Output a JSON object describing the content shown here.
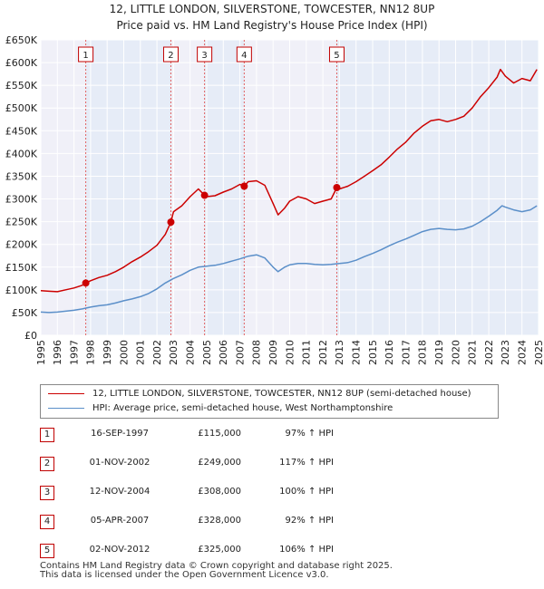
{
  "chart_data": {
    "type": "line",
    "title": "12, LITTLE LONDON, SILVERSTONE, TOWCESTER, NN12 8UP",
    "subtitle": "Price paid vs. HM Land Registry's House Price Index (HPI)",
    "xlabel": "",
    "ylabel": "",
    "xlim": [
      1995,
      2025
    ],
    "ylim": [
      0,
      650000
    ],
    "x_ticks": [
      "1995",
      "1996",
      "1997",
      "1998",
      "1999",
      "2000",
      "2001",
      "2002",
      "2003",
      "2004",
      "2005",
      "2006",
      "2007",
      "2008",
      "2009",
      "2010",
      "2011",
      "2012",
      "2013",
      "2014",
      "2015",
      "2016",
      "2017",
      "2018",
      "2019",
      "2020",
      "2021",
      "2022",
      "2023",
      "2024",
      "2025"
    ],
    "y_ticks": [
      {
        "value": 0,
        "label": "£0"
      },
      {
        "value": 50000,
        "label": "£50K"
      },
      {
        "value": 100000,
        "label": "£100K"
      },
      {
        "value": 150000,
        "label": "£150K"
      },
      {
        "value": 200000,
        "label": "£200K"
      },
      {
        "value": 250000,
        "label": "£250K"
      },
      {
        "value": 300000,
        "label": "£300K"
      },
      {
        "value": 350000,
        "label": "£350K"
      },
      {
        "value": 400000,
        "label": "£400K"
      },
      {
        "value": 450000,
        "label": "£450K"
      },
      {
        "value": 500000,
        "label": "£500K"
      },
      {
        "value": 550000,
        "label": "£550K"
      },
      {
        "value": 600000,
        "label": "£600K"
      },
      {
        "value": 650000,
        "label": "£650K"
      }
    ],
    "grid": true,
    "colors": {
      "property": "#cc0000",
      "hpi": "#5b8fc9",
      "shade": "#e6ecf7",
      "marker_line": "#e06060",
      "grid": "#ffffff"
    },
    "shaded_ranges": [
      [
        1997.71,
        2002.84
      ],
      [
        2004.87,
        2007.26
      ],
      [
        2012.84,
        2025.0
      ]
    ],
    "series": [
      {
        "name": "12, LITTLE LONDON, SILVERSTONE, TOWCESTER, NN12 8UP (semi-detached house)",
        "color": "#cc0000",
        "x": [
          1995.0,
          1995.5,
          1996.0,
          1996.5,
          1997.0,
          1997.5,
          1997.71,
          1998.0,
          1998.5,
          1999.0,
          1999.5,
          2000.0,
          2000.5,
          2001.0,
          2001.5,
          2002.0,
          2002.5,
          2002.84,
          2003.0,
          2003.5,
          2004.0,
          2004.5,
          2004.87,
          2005.0,
          2005.5,
          2006.0,
          2006.5,
          2007.0,
          2007.26,
          2007.5,
          2008.0,
          2008.5,
          2009.0,
          2009.3,
          2009.7,
          2010.0,
          2010.5,
          2011.0,
          2011.5,
          2012.0,
          2012.5,
          2012.84,
          2013.0,
          2013.5,
          2014.0,
          2014.5,
          2015.0,
          2015.5,
          2016.0,
          2016.5,
          2017.0,
          2017.5,
          2018.0,
          2018.5,
          2019.0,
          2019.5,
          2020.0,
          2020.5,
          2021.0,
          2021.5,
          2022.0,
          2022.5,
          2022.7,
          2023.0,
          2023.5,
          2024.0,
          2024.5,
          2024.9
        ],
        "values": [
          98000,
          97000,
          96000,
          100000,
          104000,
          110000,
          115000,
          120000,
          127000,
          132000,
          140000,
          150000,
          162000,
          172000,
          184000,
          198000,
          222000,
          249000,
          272000,
          285000,
          305000,
          322000,
          308000,
          305000,
          307000,
          315000,
          322000,
          332000,
          328000,
          338000,
          340000,
          330000,
          290000,
          265000,
          280000,
          295000,
          305000,
          300000,
          290000,
          295000,
          300000,
          325000,
          322000,
          328000,
          338000,
          350000,
          362000,
          375000,
          392000,
          410000,
          425000,
          445000,
          460000,
          472000,
          475000,
          470000,
          475000,
          482000,
          500000,
          525000,
          545000,
          568000,
          585000,
          570000,
          555000,
          565000,
          560000,
          585000
        ]
      },
      {
        "name": "HPI: Average price, semi-detached house, West Northamptonshire",
        "color": "#5b8fc9",
        "x": [
          1995.0,
          1995.5,
          1996.0,
          1996.5,
          1997.0,
          1997.5,
          1998.0,
          1998.5,
          1999.0,
          1999.5,
          2000.0,
          2000.5,
          2001.0,
          2001.5,
          2002.0,
          2002.5,
          2003.0,
          2003.5,
          2004.0,
          2004.5,
          2005.0,
          2005.5,
          2006.0,
          2006.5,
          2007.0,
          2007.5,
          2008.0,
          2008.5,
          2009.0,
          2009.3,
          2009.7,
          2010.0,
          2010.5,
          2011.0,
          2011.5,
          2012.0,
          2012.5,
          2013.0,
          2013.5,
          2014.0,
          2014.5,
          2015.0,
          2015.5,
          2016.0,
          2016.5,
          2017.0,
          2017.5,
          2018.0,
          2018.5,
          2019.0,
          2019.5,
          2020.0,
          2020.5,
          2021.0,
          2021.5,
          2022.0,
          2022.5,
          2022.8,
          2023.0,
          2023.5,
          2024.0,
          2024.5,
          2024.9
        ],
        "values": [
          51000,
          50000,
          51000,
          53000,
          55000,
          58000,
          62000,
          65000,
          67000,
          71000,
          76000,
          80000,
          85000,
          92000,
          102000,
          115000,
          125000,
          133000,
          143000,
          150000,
          152000,
          154000,
          158000,
          163000,
          168000,
          174000,
          177000,
          170000,
          150000,
          140000,
          150000,
          155000,
          158000,
          158000,
          156000,
          155000,
          156000,
          158000,
          160000,
          165000,
          173000,
          180000,
          188000,
          197000,
          205000,
          212000,
          220000,
          228000,
          233000,
          235000,
          233000,
          232000,
          234000,
          240000,
          250000,
          262000,
          275000,
          285000,
          282000,
          276000,
          272000,
          276000,
          285000
        ]
      }
    ],
    "sale_points": [
      {
        "label": "1",
        "x": 1997.71,
        "value": 115000
      },
      {
        "label": "2",
        "x": 2002.84,
        "value": 249000
      },
      {
        "label": "3",
        "x": 2004.87,
        "value": 308000
      },
      {
        "label": "4",
        "x": 2007.26,
        "value": 328000
      },
      {
        "label": "5",
        "x": 2012.84,
        "value": 325000
      }
    ]
  },
  "legend": {
    "property_label": "12, LITTLE LONDON, SILVERSTONE, TOWCESTER, NN12 8UP (semi-detached house)",
    "hpi_label": "HPI: Average price, semi-detached house, West Northamptonshire"
  },
  "sales_table": [
    {
      "num": "1",
      "date": "16-SEP-1997",
      "price": "£115,000",
      "hpi": "97% ↑ HPI"
    },
    {
      "num": "2",
      "date": "01-NOV-2002",
      "price": "£249,000",
      "hpi": "117% ↑ HPI"
    },
    {
      "num": "3",
      "date": "12-NOV-2004",
      "price": "£308,000",
      "hpi": "100% ↑ HPI"
    },
    {
      "num": "4",
      "date": "05-APR-2007",
      "price": "£328,000",
      "hpi": "92% ↑ HPI"
    },
    {
      "num": "5",
      "date": "02-NOV-2012",
      "price": "£325,000",
      "hpi": "106% ↑ HPI"
    }
  ],
  "footer": {
    "line1": "Contains HM Land Registry data © Crown copyright and database right 2025.",
    "line2": "This data is licensed under the Open Government Licence v3.0."
  }
}
